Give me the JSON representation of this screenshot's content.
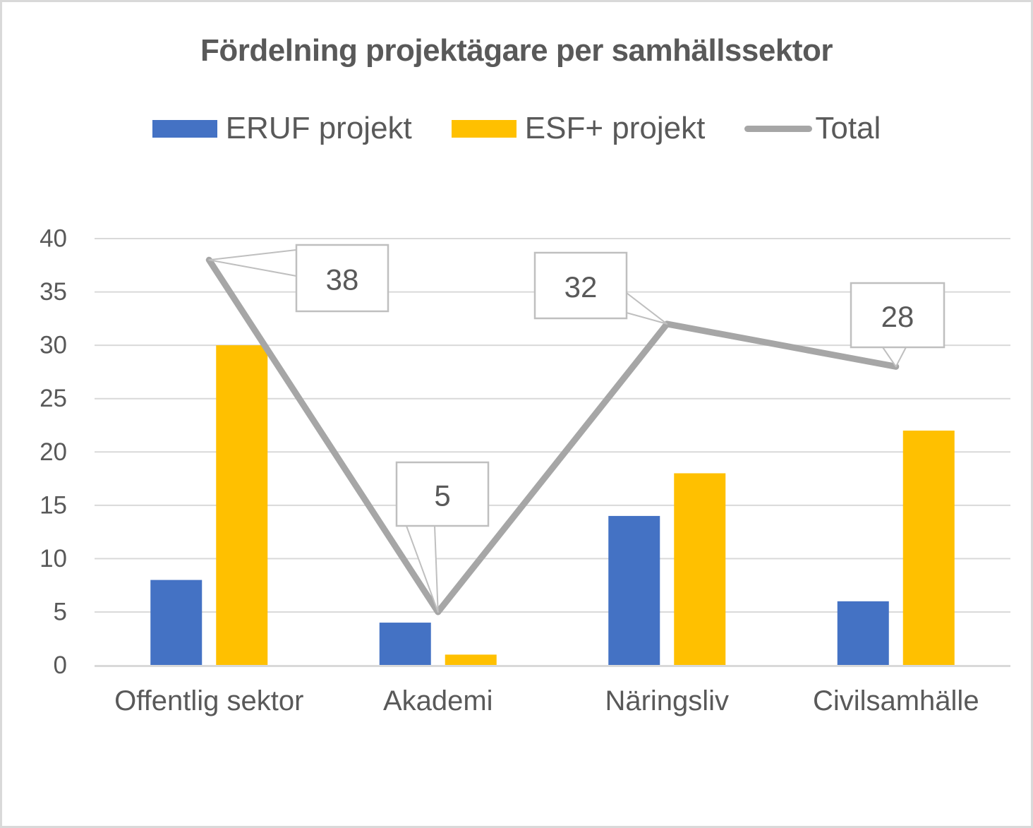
{
  "chart_data": {
    "type": "bar",
    "subtype": "grouped-bar-with-line-overlay",
    "title": "Fördelning projektägare per samhällssektor",
    "categories": [
      "Offentlig sektor",
      "Akademi",
      "Näringsliv",
      "Civilsamhälle"
    ],
    "series": [
      {
        "name": "ERUF projekt",
        "type": "bar",
        "color": "#4472C4",
        "values": [
          8,
          4,
          14,
          6
        ]
      },
      {
        "name": "ESF+ projekt",
        "type": "bar",
        "color": "#FFC000",
        "values": [
          30,
          1,
          18,
          22
        ]
      },
      {
        "name": "Total",
        "type": "line",
        "color": "#A6A6A6",
        "values": [
          38,
          5,
          32,
          28
        ],
        "data_labels": [
          "38",
          "5",
          "32",
          "28"
        ],
        "label_style": "callout"
      }
    ],
    "xlabel": "",
    "ylabel": "",
    "ylim": [
      0,
      40
    ],
    "ytick_step": 5,
    "yticks": [
      "0",
      "5",
      "10",
      "15",
      "20",
      "25",
      "30",
      "35",
      "40"
    ],
    "grid": true,
    "legend_position": "top",
    "colors": {
      "text": "#595959",
      "gridline": "#D9D9D9",
      "axis_line": "#D9D9D9",
      "callout_border": "#BFBFBF",
      "callout_fill": "#FFFFFF",
      "background": "#FFFFFF",
      "frame_border": "#D9D9D9"
    }
  }
}
